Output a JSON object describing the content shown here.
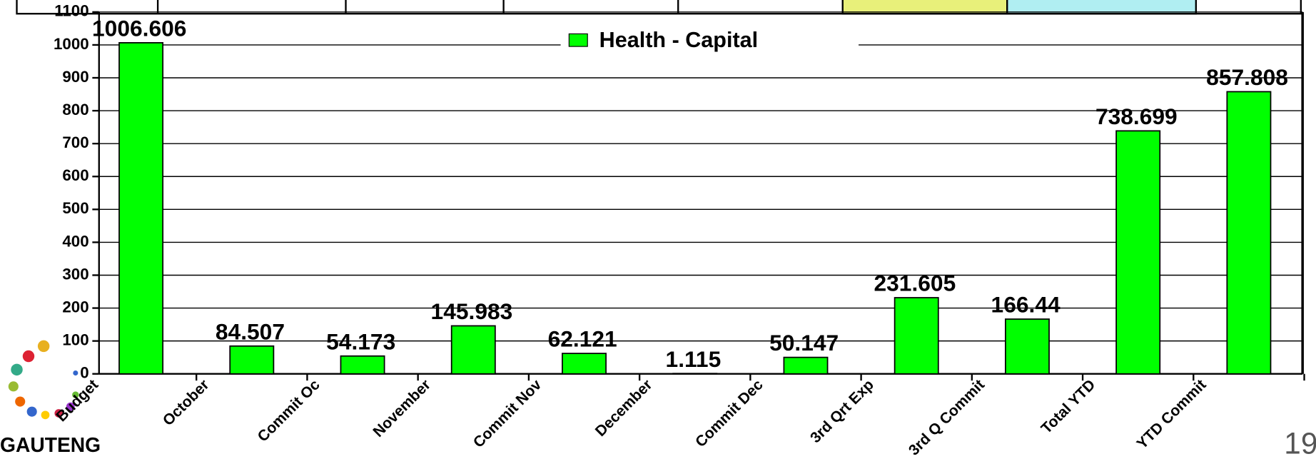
{
  "chart_data": {
    "type": "bar",
    "legend": "Health - Capital",
    "categories": [
      "Budget",
      "October",
      "Commit Oc",
      "November",
      "Commit Nov",
      "December",
      "Commit Dec",
      "3rd Qrt Exp",
      "3rd Q Commit",
      "Total YTD",
      "YTD Commit"
    ],
    "values": [
      1006.606,
      84.507,
      54.173,
      145.983,
      62.121,
      1.115,
      50.147,
      231.605,
      166.44,
      738.699,
      857.808
    ],
    "color": "#00ff00",
    "ylim": [
      0,
      1100
    ],
    "yticks": [
      0,
      100,
      200,
      300,
      400,
      500,
      600,
      700,
      800,
      900,
      1000,
      1100
    ],
    "grid": true
  },
  "logo": "GAUTENG",
  "page_number": "19"
}
